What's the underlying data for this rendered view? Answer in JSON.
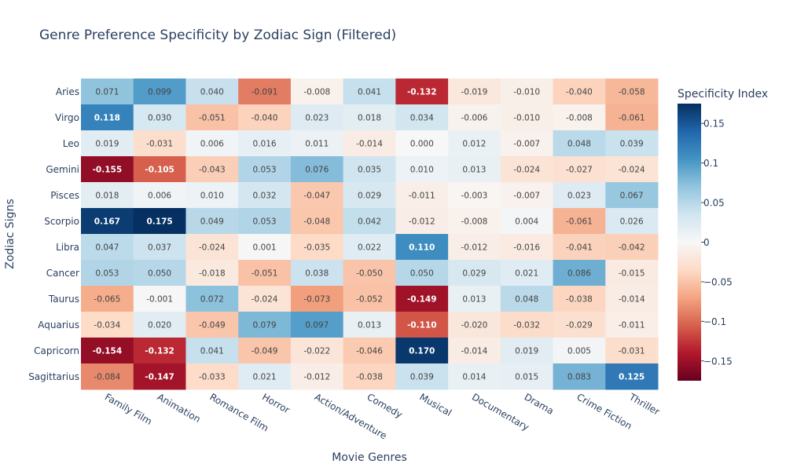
{
  "chart_data": {
    "type": "heatmap",
    "title": "Genre Preference Specificity by Zodiac Sign (Filtered)",
    "xlabel": "Movie Genres",
    "ylabel": "Zodiac Signs",
    "colorbar_title": "Specificity Index",
    "colorbar_ticks": [
      {
        "value": 0.15,
        "label": "0.15"
      },
      {
        "value": 0.1,
        "label": "0.1"
      },
      {
        "value": 0.05,
        "label": "0.05"
      },
      {
        "value": 0,
        "label": "0"
      },
      {
        "value": -0.05,
        "label": "−0.05"
      },
      {
        "value": -0.1,
        "label": "−0.1"
      },
      {
        "value": -0.15,
        "label": "−0.15"
      }
    ],
    "zrange": [
      -0.175,
      0.175
    ],
    "x": [
      "Family Film",
      "Animation",
      "Romance Film",
      "Horror",
      "Action/Adventure",
      "Comedy",
      "Musical",
      "Documentary",
      "Drama",
      "Crime Fiction",
      "Thriller"
    ],
    "y": [
      "Aries",
      "Virgo",
      "Leo",
      "Gemini",
      "Pisces",
      "Scorpio",
      "Libra",
      "Cancer",
      "Taurus",
      "Aquarius",
      "Capricorn",
      "Sagittarius"
    ],
    "z": [
      [
        0.071,
        0.099,
        0.04,
        -0.091,
        -0.008,
        0.041,
        -0.132,
        -0.019,
        -0.01,
        -0.04,
        -0.058
      ],
      [
        0.118,
        0.03,
        -0.051,
        -0.04,
        0.023,
        0.018,
        0.034,
        -0.006,
        -0.01,
        -0.008,
        -0.061
      ],
      [
        0.019,
        -0.031,
        0.006,
        0.016,
        0.011,
        -0.014,
        0.0,
        0.012,
        -0.007,
        0.048,
        0.039
      ],
      [
        -0.155,
        -0.105,
        -0.043,
        0.053,
        0.076,
        0.035,
        0.01,
        0.013,
        -0.024,
        -0.027,
        -0.024
      ],
      [
        0.018,
        0.006,
        0.01,
        0.032,
        -0.047,
        0.029,
        -0.011,
        -0.003,
        -0.007,
        0.023,
        0.067
      ],
      [
        0.167,
        0.175,
        0.049,
        0.053,
        -0.048,
        0.042,
        -0.012,
        -0.008,
        0.004,
        -0.061,
        0.026
      ],
      [
        0.047,
        0.037,
        -0.024,
        0.001,
        -0.035,
        0.022,
        0.11,
        -0.012,
        -0.016,
        -0.041,
        -0.042
      ],
      [
        0.053,
        0.05,
        -0.018,
        -0.051,
        0.038,
        -0.05,
        0.05,
        0.029,
        0.021,
        0.086,
        -0.015
      ],
      [
        -0.065,
        -0.001,
        0.072,
        -0.024,
        -0.073,
        -0.052,
        -0.149,
        0.013,
        0.048,
        -0.038,
        -0.014
      ],
      [
        -0.034,
        0.02,
        -0.049,
        0.079,
        0.097,
        0.013,
        -0.11,
        -0.02,
        -0.032,
        -0.029,
        -0.011
      ],
      [
        -0.154,
        -0.132,
        0.041,
        -0.049,
        -0.022,
        -0.046,
        0.17,
        -0.014,
        0.019,
        0.005,
        -0.031
      ],
      [
        -0.084,
        -0.147,
        -0.033,
        0.021,
        -0.012,
        -0.038,
        0.039,
        0.014,
        0.015,
        0.083,
        0.125
      ]
    ],
    "colorscale": [
      "#67001f",
      "#b2182b",
      "#d6604d",
      "#f4a582",
      "#fddbc7",
      "#f7f7f7",
      "#d1e5f0",
      "#92c5de",
      "#4393c3",
      "#2166ac",
      "#053061"
    ],
    "text_color_dark": "#444444",
    "text_color_light": "#ffffff",
    "axis_text_color": "#2a3f5f"
  }
}
